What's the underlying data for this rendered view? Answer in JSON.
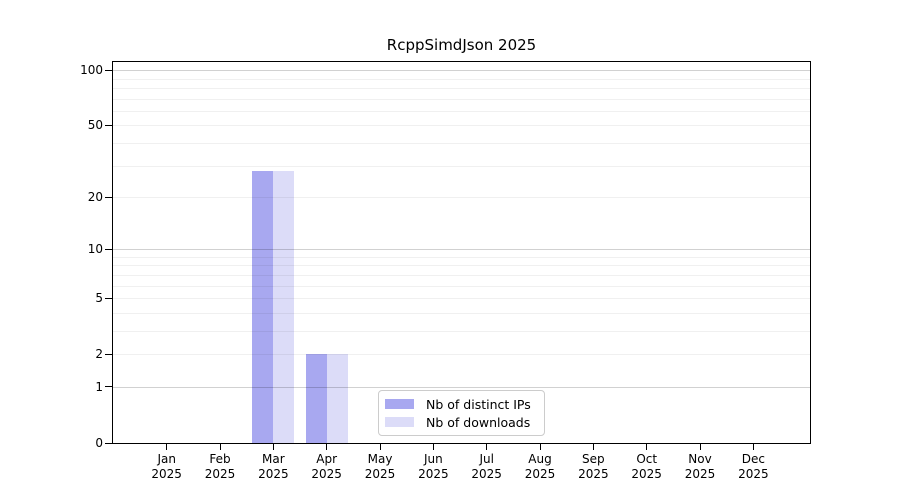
{
  "title": "RcppSimdJson 2025",
  "colors": {
    "distinct_ips": "#a8a8f0",
    "downloads": "#dcdcf8",
    "spine": "#000000",
    "grid_major": "#cccccc",
    "grid_minor": "#efefef"
  },
  "chart_data": {
    "type": "bar",
    "title": "RcppSimdJson 2025",
    "categories": [
      "Jan",
      "Feb",
      "Mar",
      "Apr",
      "May",
      "Jun",
      "Jul",
      "Aug",
      "Sep",
      "Oct",
      "Nov",
      "Dec"
    ],
    "year_label": "2025",
    "series": [
      {
        "name": "Nb of distinct IPs",
        "color": "#a8a8f0",
        "values": [
          0,
          0,
          28,
          2,
          0,
          0,
          0,
          0,
          0,
          0,
          0,
          0
        ]
      },
      {
        "name": "Nb of downloads",
        "color": "#dcdcf8",
        "values": [
          0,
          0,
          28,
          2,
          0,
          0,
          0,
          0,
          0,
          0,
          0,
          0
        ]
      }
    ],
    "y_ticks": [
      0,
      1,
      2,
      5,
      10,
      20,
      50,
      100
    ],
    "scale": "log1p",
    "ylim": [
      0,
      110
    ],
    "xlabel": "",
    "ylabel": "",
    "grid": "horizontal",
    "legend_position": "inside-bottom-center"
  }
}
